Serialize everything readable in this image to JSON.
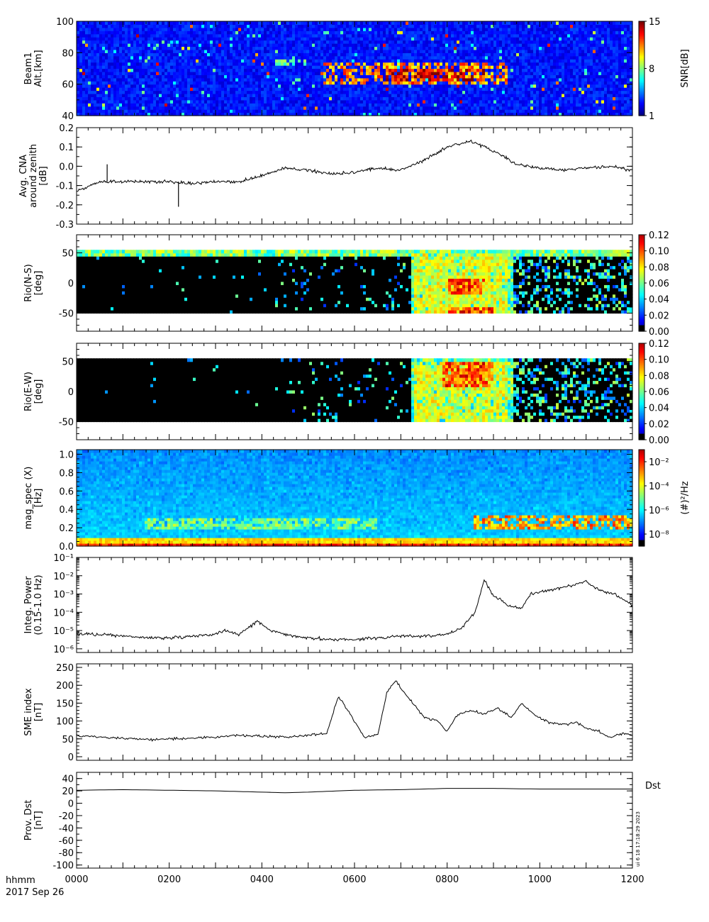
{
  "figure": {
    "time_label": "hhmm",
    "date_label": "2017 Sep 26",
    "x_ticks": [
      "0000",
      "0200",
      "0400",
      "0600",
      "0800",
      "1000",
      "1200"
    ],
    "stamp": "ui 6 18 17:18:29 2023"
  },
  "chart_data": [
    {
      "type": "heatmap",
      "name": "beam1",
      "ylabel_lines": [
        "Beam1",
        "Alt.[km]"
      ],
      "yticks": [
        "40",
        "60",
        "80",
        "100"
      ],
      "ylim": [
        40,
        100
      ],
      "colorbar": {
        "label": "SNR[dB]",
        "ticks": [
          "1",
          "8",
          "15"
        ],
        "range": [
          1,
          15
        ]
      },
      "features": [
        {
          "t_hours": [
            4.3,
            5.0
          ],
          "alt_km": [
            72,
            75
          ],
          "level": 8
        },
        {
          "t_hours": [
            5.3,
            9.3
          ],
          "alt_km": [
            60,
            74
          ],
          "level": 12
        },
        {
          "t_hours": [
            6.7,
            8.8
          ],
          "alt_km": [
            63,
            70
          ],
          "level": 15
        }
      ]
    },
    {
      "type": "line",
      "name": "cna",
      "ylabel_lines": [
        "Avg. CNA",
        "around zenith",
        "[dB]"
      ],
      "yticks": [
        "-0.3",
        "-0.2",
        "-0.1",
        "0.0",
        "0.1",
        "0.2"
      ],
      "ylim": [
        -0.3,
        0.2
      ],
      "x_hours": [
        0,
        0.5,
        1,
        1.5,
        2,
        2.5,
        3,
        3.5,
        4,
        4.5,
        5,
        5.5,
        6,
        6.5,
        7,
        7.5,
        8,
        8.5,
        9,
        9.5,
        10,
        10.5,
        11,
        11.5,
        12
      ],
      "values": [
        -0.13,
        -0.08,
        -0.08,
        -0.08,
        -0.08,
        -0.09,
        -0.08,
        -0.08,
        -0.05,
        -0.01,
        -0.02,
        -0.04,
        -0.03,
        -0.01,
        -0.02,
        0.03,
        0.1,
        0.13,
        0.08,
        0.01,
        -0.01,
        -0.02,
        -0.01,
        0.0,
        -0.02
      ],
      "spikes": [
        {
          "x_hours": 0.66,
          "value": 0.01
        },
        {
          "x_hours": 2.2,
          "value": -0.21
        }
      ]
    },
    {
      "type": "heatmap",
      "name": "riometer_ns",
      "ylabel_lines": [
        "Rio(N-S)",
        "[deg]"
      ],
      "yticks": [
        "-50",
        "0",
        "50"
      ],
      "ylim": [
        -80,
        80
      ],
      "colorbar": {
        "label": "",
        "ticks": [
          "0.00",
          "0.02",
          "0.04",
          "0.06",
          "0.08",
          "0.10",
          "0.12"
        ],
        "range": [
          0,
          0.12
        ]
      },
      "features": [
        {
          "t_hours": [
            7.3,
            9.3
          ],
          "deg": [
            -50,
            50
          ],
          "level": 0.08
        },
        {
          "t_hours": [
            8.0,
            8.8
          ],
          "deg": [
            -20,
            10
          ],
          "level": 0.11
        },
        {
          "t_hours": [
            8.0,
            9.0
          ],
          "deg": [
            -50,
            -40
          ],
          "level": 0.12
        }
      ]
    },
    {
      "type": "heatmap",
      "name": "riometer_ew",
      "ylabel_lines": [
        "Rio(E-W)",
        "[deg]"
      ],
      "yticks": [
        "-50",
        "0",
        "50"
      ],
      "ylim": [
        -80,
        80
      ],
      "colorbar": {
        "label": "",
        "ticks": [
          "0.00",
          "0.02",
          "0.04",
          "0.06",
          "0.08",
          "0.10",
          "0.12"
        ],
        "range": [
          0,
          0.12
        ]
      },
      "features": [
        {
          "t_hours": [
            7.3,
            9.3
          ],
          "deg": [
            -50,
            50
          ],
          "level": 0.08
        },
        {
          "t_hours": [
            7.9,
            9.0
          ],
          "deg": [
            10,
            50
          ],
          "level": 0.11
        }
      ]
    },
    {
      "type": "heatmap",
      "name": "mag_spec",
      "ylabel_lines": [
        "mag_spec (X)",
        "[Hz]"
      ],
      "yticks": [
        "0.0",
        "0.2",
        "0.4",
        "0.6",
        "0.8",
        "1.0"
      ],
      "ylim": [
        0,
        1.05
      ],
      "colorbar": {
        "label": "(#)²/Hz",
        "ticks": [
          "10⁻⁸",
          "10⁻⁶",
          "10⁻⁴",
          "10⁻²"
        ],
        "range_log10": [
          -9,
          -1
        ]
      },
      "features": [
        {
          "t_hours": [
            1.5,
            6.5
          ],
          "hz": [
            0.2,
            0.3
          ],
          "log10_power": -4.5
        },
        {
          "t_hours": [
            8.6,
            12.0
          ],
          "hz": [
            0.18,
            0.35
          ],
          "log10_power": -2.5
        }
      ]
    },
    {
      "type": "line",
      "name": "integ_power",
      "ylabel_lines": [
        "Integ. Power",
        "(0.15-1.0 Hz)"
      ],
      "yscale": "log",
      "ytick_exponents": [
        -6,
        -5,
        -4,
        -3,
        -2,
        -1
      ],
      "ylim_log10": [
        -6.2,
        -1
      ],
      "x_hours": [
        0,
        0.5,
        1,
        1.5,
        2,
        2.5,
        3,
        3.2,
        3.5,
        3.9,
        4.2,
        4.5,
        5,
        5.5,
        6,
        6.5,
        7,
        7.5,
        8,
        8.3,
        8.6,
        8.8,
        9.0,
        9.3,
        9.6,
        9.8,
        10.2,
        10.6,
        11,
        11.3,
        11.6,
        12
      ],
      "log10_values": [
        -5.2,
        -5.2,
        -5.3,
        -5.4,
        -5.4,
        -5.3,
        -5.2,
        -5.0,
        -5.2,
        -4.5,
        -5.0,
        -5.2,
        -5.4,
        -5.5,
        -5.5,
        -5.4,
        -5.3,
        -5.3,
        -5.2,
        -4.9,
        -4.0,
        -2.2,
        -3.1,
        -3.6,
        -3.8,
        -3.0,
        -2.8,
        -2.6,
        -2.3,
        -2.8,
        -3.0,
        -3.6
      ]
    },
    {
      "type": "line",
      "name": "sme",
      "ylabel_lines": [
        "SME index",
        "[nT]"
      ],
      "yticks": [
        "0",
        "50",
        "100",
        "150",
        "200",
        "250"
      ],
      "ylim": [
        -10,
        260
      ],
      "x_hours": [
        0,
        0.5,
        1,
        1.5,
        2,
        2.5,
        3,
        3.5,
        4,
        4.5,
        5,
        5.4,
        5.65,
        5.8,
        6.0,
        6.2,
        6.5,
        6.7,
        6.9,
        7.0,
        7.2,
        7.5,
        7.8,
        8.0,
        8.2,
        8.5,
        8.8,
        9.1,
        9.4,
        9.6,
        9.9,
        10.2,
        10.5,
        10.8,
        11,
        11.3,
        11.5,
        11.8,
        12
      ],
      "values": [
        60,
        55,
        52,
        48,
        50,
        52,
        55,
        60,
        58,
        55,
        60,
        65,
        170,
        140,
        100,
        55,
        60,
        180,
        215,
        190,
        160,
        110,
        100,
        70,
        115,
        130,
        120,
        135,
        110,
        150,
        115,
        95,
        90,
        95,
        80,
        70,
        55,
        65,
        60
      ]
    },
    {
      "type": "line",
      "name": "dst",
      "ylabel_lines": [
        "Prov. Dst",
        "[nT]"
      ],
      "yticks": [
        "-100",
        "-80",
        "-60",
        "-40",
        "-20",
        "0",
        "20",
        "40"
      ],
      "ylim": [
        -105,
        50
      ],
      "series_label": "Dst",
      "x_hours": [
        0,
        1,
        2,
        3,
        4,
        4.5,
        5,
        6,
        7,
        8,
        9,
        10,
        11,
        12
      ],
      "values": [
        21,
        22,
        21,
        20,
        18,
        17,
        18,
        21,
        22,
        24,
        24,
        23,
        23,
        23
      ]
    }
  ]
}
